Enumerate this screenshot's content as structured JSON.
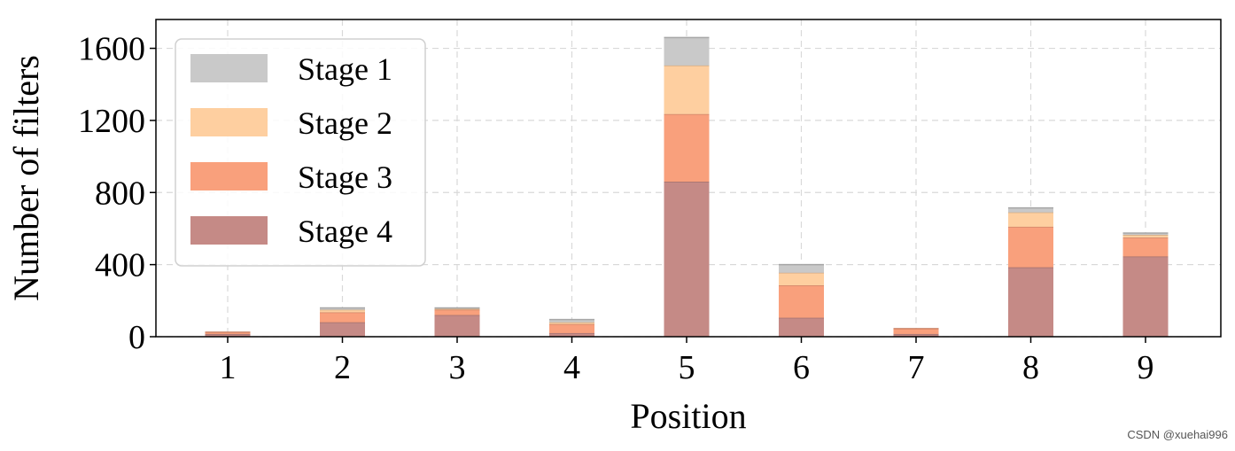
{
  "chart_data": {
    "type": "bar",
    "stacked": true,
    "title": "",
    "xlabel": "Position",
    "ylabel": "Number of filters",
    "categories": [
      "1",
      "2",
      "3",
      "4",
      "5",
      "6",
      "7",
      "8",
      "9"
    ],
    "ylim": [
      0,
      1760
    ],
    "yticks": [
      0,
      400,
      800,
      1200,
      1600
    ],
    "grid": true,
    "legend_position": "top-left",
    "series": [
      {
        "name": "Stage 4",
        "color": "#c58a86",
        "values": [
          15,
          80,
          120,
          20,
          860,
          105,
          15,
          385,
          445
        ]
      },
      {
        "name": "Stage 3",
        "color": "#f9a07c",
        "values": [
          10,
          55,
          30,
          50,
          375,
          180,
          30,
          225,
          105
        ]
      },
      {
        "name": "Stage 2",
        "color": "#fecfa0",
        "values": [
          0,
          15,
          5,
          10,
          270,
          70,
          0,
          80,
          15
        ]
      },
      {
        "name": "Stage 1",
        "color": "#c9c9c9",
        "values": [
          0,
          10,
          5,
          15,
          155,
          45,
          0,
          25,
          10
        ]
      }
    ],
    "legend_order": [
      "Stage 1",
      "Stage 2",
      "Stage 3",
      "Stage 4"
    ]
  },
  "watermark": "CSDN @xuehai996"
}
